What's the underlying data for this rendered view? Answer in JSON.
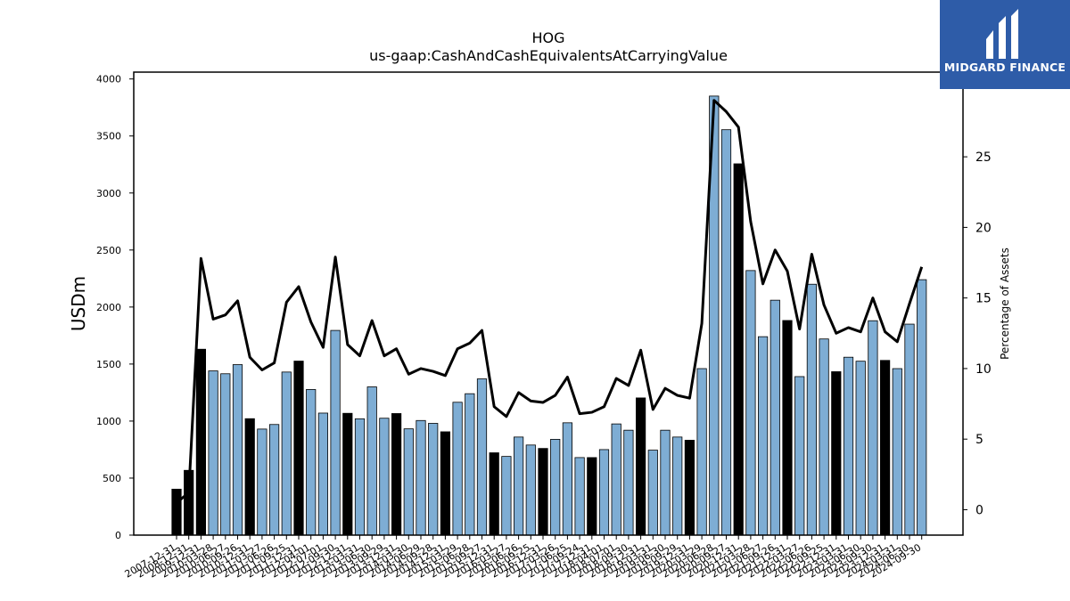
{
  "logo": {
    "text": "MIDGARD FINANCE",
    "icon": "midgard-logo-mark",
    "color": "#2e5ca8"
  },
  "chart_data": {
    "type": "bar",
    "title": "HOG",
    "subtitle": "us-gaap:CashAndCashEquivalentsAtCarryingValue",
    "ylabel": "USDm",
    "y2label": "Percentage of Assets",
    "ylim": [
      0,
      4060
    ],
    "y2lim": [
      -1.8,
      31.0
    ],
    "yticks": [
      0,
      500,
      1000,
      1500,
      2000,
      2500,
      3000,
      3500,
      4000
    ],
    "y2ticks": [
      0,
      5,
      10,
      15,
      20,
      25
    ],
    "grid": false,
    "colors": {
      "annual": "#000000",
      "quarterly": "#7eadd4",
      "line": "#000000"
    },
    "categories": [
      "2007-12-31",
      "2008-12-31",
      "2009-12-31",
      "2010-03-28",
      "2010-06-27",
      "2010-09-26",
      "2010-12-31",
      "2011-03-27",
      "2011-06-26",
      "2011-09-25",
      "2011-12-31",
      "2012-04-01",
      "2012-07-01",
      "2012-09-30",
      "2012-12-31",
      "2013-03-31",
      "2013-06-30",
      "2013-09-29",
      "2013-12-31",
      "2014-03-30",
      "2014-06-29",
      "2014-09-28",
      "2014-12-31",
      "2015-03-29",
      "2015-06-28",
      "2015-09-27",
      "2015-12-31",
      "2016-03-27",
      "2016-06-26",
      "2016-09-25",
      "2016-12-31",
      "2017-03-26",
      "2017-06-25",
      "2017-09-24",
      "2017-12-31",
      "2018-04-01",
      "2018-07-01",
      "2018-09-30",
      "2018-12-31",
      "2019-03-31",
      "2019-06-30",
      "2019-09-29",
      "2019-12-31",
      "2020-03-29",
      "2020-06-28",
      "2020-09-27",
      "2020-12-31",
      "2021-03-28",
      "2021-06-27",
      "2021-09-26",
      "2021-12-31",
      "2022-03-27",
      "2022-06-26",
      "2022-09-25",
      "2022-12-31",
      "2023-03-31",
      "2023-06-30",
      "2023-09-30",
      "2023-12-31",
      "2024-03-31",
      "2024-06-30",
      "2024-09-30"
    ],
    "series": [
      {
        "values": [
          403,
          568,
          1630,
          1440,
          1415,
          1495,
          1021,
          930,
          970,
          1430,
          1526,
          1277,
          1070,
          1795,
          1068,
          1020,
          1300,
          1025,
          1066,
          932,
          1005,
          980,
          906,
          1165,
          1240,
          1370,
          722,
          690,
          860,
          790,
          760,
          840,
          985,
          680,
          680,
          750,
          975,
          920,
          1203,
          745,
          920,
          860,
          832,
          1460,
          3850,
          3555,
          3256,
          2320,
          1740,
          2060,
          1882,
          1390,
          2200,
          1720,
          1433,
          1560,
          1525,
          1880,
          1532,
          1460,
          1850,
          2240
        ]
      },
      {
        "values": [
          0.5,
          1.2,
          17.8,
          13.5,
          13.8,
          14.8,
          10.8,
          9.9,
          10.4,
          14.7,
          15.8,
          13.3,
          11.5,
          17.9,
          11.7,
          10.9,
          13.4,
          10.9,
          11.4,
          9.6,
          10.0,
          9.8,
          9.5,
          11.4,
          11.8,
          12.7,
          7.3,
          6.6,
          8.3,
          7.7,
          7.6,
          8.1,
          9.4,
          6.8,
          6.9,
          7.3,
          9.3,
          8.8,
          11.3,
          7.1,
          8.6,
          8.1,
          7.9,
          13.2,
          29.0,
          28.2,
          27.1,
          20.4,
          16.0,
          18.4,
          16.9,
          12.8,
          18.1,
          14.5,
          12.5,
          12.9,
          12.6,
          15.0,
          12.6,
          11.9,
          14.6,
          17.2
        ]
      }
    ],
    "bar_types": [
      "A",
      "A",
      "A",
      "Q",
      "Q",
      "Q",
      "A",
      "Q",
      "Q",
      "Q",
      "A",
      "Q",
      "Q",
      "Q",
      "A",
      "Q",
      "Q",
      "Q",
      "A",
      "Q",
      "Q",
      "Q",
      "A",
      "Q",
      "Q",
      "Q",
      "A",
      "Q",
      "Q",
      "Q",
      "A",
      "Q",
      "Q",
      "Q",
      "A",
      "Q",
      "Q",
      "Q",
      "A",
      "Q",
      "Q",
      "Q",
      "A",
      "Q",
      "Q",
      "Q",
      "A",
      "Q",
      "Q",
      "Q",
      "A",
      "Q",
      "Q",
      "Q",
      "A",
      "Q",
      "Q",
      "Q",
      "A",
      "Q",
      "Q",
      "Q"
    ]
  }
}
